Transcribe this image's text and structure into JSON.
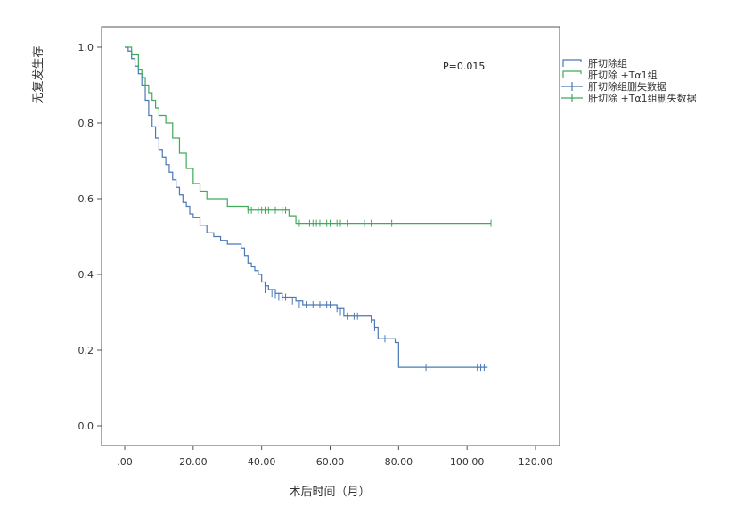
{
  "chart_data": {
    "type": "line",
    "title": "",
    "xlabel": "术后时间（月）",
    "ylabel": "无复发生存",
    "xlim": [
      0,
      120
    ],
    "ylim": [
      0,
      1
    ],
    "x_ticks": [
      0,
      20,
      40,
      60,
      80,
      100,
      120
    ],
    "x_tick_labels": [
      ".00",
      "20.00",
      "40.00",
      "60.00",
      "80.00",
      "100.00",
      "120.00"
    ],
    "y_ticks": [
      0,
      0.2,
      0.4,
      0.6,
      0.8,
      1.0
    ],
    "y_tick_labels": [
      "0.0",
      "0.2",
      "0.4",
      "0.6",
      "0.8",
      "1.0"
    ],
    "grid": false,
    "legend_position": "right",
    "annotation": "P=0.015",
    "legend": [
      {
        "label": "肝切除组",
        "kind": "line",
        "color": "#4a78b8"
      },
      {
        "label": "肝切除 +Tα1组",
        "kind": "line",
        "color": "#3faa5a"
      },
      {
        "label": "肝切除组删失数据",
        "kind": "censor",
        "color": "#4a78b8"
      },
      {
        "label": "肝切除 +Tα1组删失数据",
        "kind": "censor",
        "color": "#3faa5a"
      }
    ],
    "series": [
      {
        "name": "肝切除组",
        "color": "#4a78b8",
        "steps": [
          [
            0,
            1.0
          ],
          [
            1,
            0.99
          ],
          [
            2,
            0.97
          ],
          [
            3,
            0.95
          ],
          [
            4,
            0.93
          ],
          [
            5,
            0.9
          ],
          [
            6,
            0.86
          ],
          [
            7,
            0.82
          ],
          [
            8,
            0.79
          ],
          [
            9,
            0.76
          ],
          [
            10,
            0.73
          ],
          [
            11,
            0.71
          ],
          [
            12,
            0.69
          ],
          [
            13,
            0.67
          ],
          [
            14,
            0.65
          ],
          [
            15,
            0.63
          ],
          [
            16,
            0.61
          ],
          [
            17,
            0.59
          ],
          [
            18,
            0.58
          ],
          [
            19,
            0.56
          ],
          [
            20,
            0.55
          ],
          [
            22,
            0.53
          ],
          [
            24,
            0.51
          ],
          [
            26,
            0.5
          ],
          [
            28,
            0.49
          ],
          [
            30,
            0.48
          ],
          [
            34,
            0.47
          ],
          [
            35,
            0.45
          ],
          [
            36,
            0.43
          ],
          [
            37,
            0.42
          ],
          [
            38,
            0.41
          ],
          [
            39,
            0.4
          ],
          [
            40,
            0.38
          ],
          [
            41,
            0.37
          ],
          [
            42,
            0.36
          ],
          [
            44,
            0.35
          ],
          [
            46,
            0.34
          ],
          [
            50,
            0.33
          ],
          [
            52,
            0.32
          ],
          [
            62,
            0.31
          ],
          [
            64,
            0.29
          ],
          [
            72,
            0.28
          ],
          [
            73,
            0.26
          ],
          [
            74,
            0.23
          ],
          [
            79,
            0.22
          ],
          [
            80,
            0.155
          ],
          [
            106,
            0.155
          ]
        ],
        "censored": [
          [
            41,
            0.36
          ],
          [
            43,
            0.35
          ],
          [
            44,
            0.345
          ],
          [
            45,
            0.34
          ],
          [
            46,
            0.34
          ],
          [
            47,
            0.34
          ],
          [
            49,
            0.33
          ],
          [
            51,
            0.32
          ],
          [
            53,
            0.32
          ],
          [
            55,
            0.32
          ],
          [
            57,
            0.32
          ],
          [
            59,
            0.32
          ],
          [
            60,
            0.32
          ],
          [
            62,
            0.31
          ],
          [
            63,
            0.3
          ],
          [
            65,
            0.29
          ],
          [
            67,
            0.29
          ],
          [
            68,
            0.29
          ],
          [
            72,
            0.28
          ],
          [
            73,
            0.26
          ],
          [
            76,
            0.23
          ],
          [
            88,
            0.155
          ],
          [
            103,
            0.155
          ],
          [
            104,
            0.155
          ],
          [
            105,
            0.155
          ]
        ]
      },
      {
        "name": "肝切除 +Tα1组",
        "color": "#3faa5a",
        "steps": [
          [
            0,
            1.0
          ],
          [
            2,
            0.98
          ],
          [
            4,
            0.94
          ],
          [
            5,
            0.92
          ],
          [
            6,
            0.9
          ],
          [
            7,
            0.88
          ],
          [
            8,
            0.86
          ],
          [
            9,
            0.84
          ],
          [
            10,
            0.82
          ],
          [
            12,
            0.8
          ],
          [
            14,
            0.76
          ],
          [
            16,
            0.72
          ],
          [
            18,
            0.68
          ],
          [
            20,
            0.64
          ],
          [
            22,
            0.62
          ],
          [
            24,
            0.6
          ],
          [
            30,
            0.58
          ],
          [
            36,
            0.57
          ],
          [
            48,
            0.555
          ],
          [
            50,
            0.535
          ],
          [
            107,
            0.535
          ]
        ],
        "censored": [
          [
            36,
            0.57
          ],
          [
            37,
            0.57
          ],
          [
            39,
            0.57
          ],
          [
            40,
            0.57
          ],
          [
            41,
            0.57
          ],
          [
            42,
            0.57
          ],
          [
            44,
            0.57
          ],
          [
            46,
            0.57
          ],
          [
            47,
            0.57
          ],
          [
            51,
            0.535
          ],
          [
            54,
            0.535
          ],
          [
            55,
            0.535
          ],
          [
            56,
            0.535
          ],
          [
            57,
            0.535
          ],
          [
            59,
            0.535
          ],
          [
            60,
            0.535
          ],
          [
            62,
            0.535
          ],
          [
            63,
            0.535
          ],
          [
            65,
            0.535
          ],
          [
            70,
            0.535
          ],
          [
            72,
            0.535
          ],
          [
            78,
            0.535
          ],
          [
            107,
            0.535
          ]
        ]
      }
    ]
  }
}
